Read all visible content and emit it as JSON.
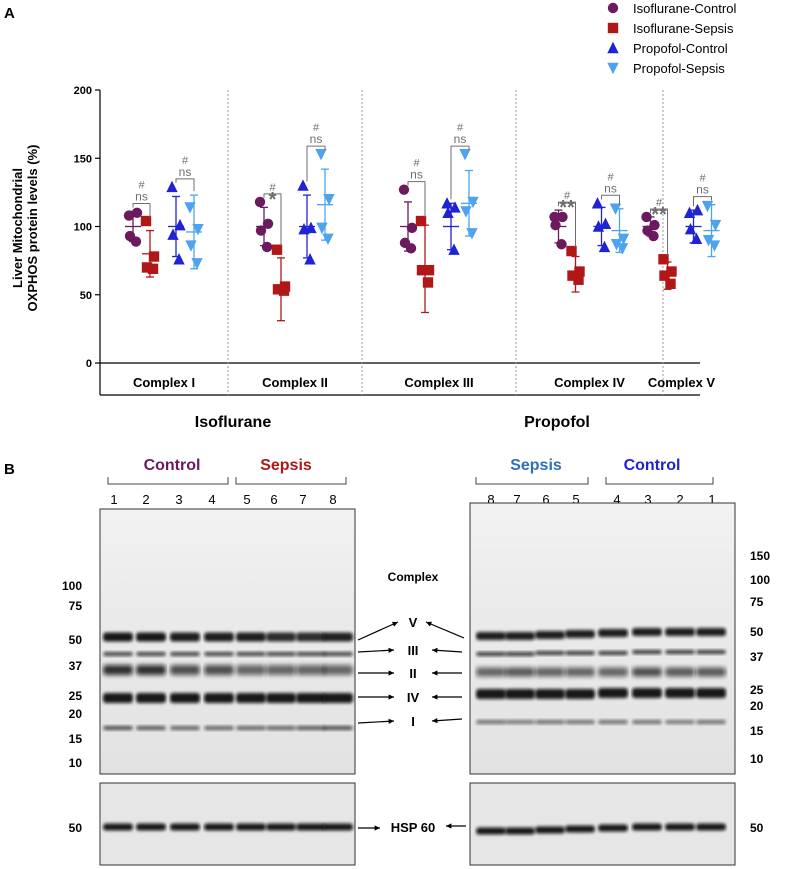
{
  "panel_a": {
    "letter": "A",
    "y_label_line1": "Liver Mitochondrial",
    "y_label_line2": "OXPHOS protein levels (%)",
    "section_labels": [
      "Isoflurane",
      "Propofol"
    ]
  },
  "panel_b": {
    "letter": "B",
    "isoflurane_blot": {
      "control_label": "Control",
      "sepsis_label": "Sepsis",
      "lanes": [
        "1",
        "2",
        "3",
        "4",
        "5",
        "6",
        "7",
        "8"
      ],
      "mw_markers": [
        "100",
        "75",
        "50",
        "37",
        "25",
        "20",
        "15",
        "10"
      ],
      "hsp_marker": "50"
    },
    "propofol_blot": {
      "sepsis_label": "Sepsis",
      "control_label": "Control",
      "lanes": [
        "8",
        "7",
        "6",
        "5",
        "4",
        "3",
        "2",
        "1"
      ],
      "mw_markers": [
        "150",
        "100",
        "75",
        "50",
        "37",
        "25",
        "20",
        "15",
        "10"
      ],
      "hsp_marker": "50"
    },
    "complex_title": "Complex",
    "complex_labels": [
      "V",
      "III",
      "II",
      "IV",
      "I"
    ],
    "hsp_label": "HSP 60"
  },
  "colors": {
    "isoflurane_control": "#6b1a5e",
    "isoflurane_sepsis": "#b01818",
    "propofol_control": "#1f23d4",
    "propofol_sepsis": "#4da3ee",
    "annotation": "#6e6e6e"
  },
  "chart_data": {
    "type": "scatter",
    "title": "",
    "xlabel": "",
    "ylabel": "Liver Mitochondrial OXPHOS protein levels (%)",
    "ylim": [
      0,
      200
    ],
    "yticks": [
      0,
      50,
      100,
      150,
      200
    ],
    "categories": [
      "Complex I",
      "Complex II",
      "Complex III",
      "Complex IV",
      "Complex V"
    ],
    "legend": [
      "Isoflurane-Control",
      "Isoflurane-Sepsis",
      "Propofol-Control",
      "Propofol-Sepsis"
    ],
    "legend_position": "top-right",
    "series": [
      {
        "name": "Isoflurane-Control",
        "marker": "circle",
        "color": "#6b1a5e",
        "points": [
          [
            108,
            110,
            93,
            89
          ],
          [
            118,
            102,
            97,
            85
          ],
          [
            127,
            99,
            88,
            84
          ],
          [
            107,
            107,
            101,
            87
          ],
          [
            107,
            101,
            97,
            93
          ]
        ],
        "mean": [
          100,
          100,
          100,
          100,
          100
        ],
        "sd": [
          11,
          14,
          18,
          12,
          7
        ]
      },
      {
        "name": "Isoflurane-Sepsis",
        "marker": "square",
        "color": "#b01818",
        "points": [
          [
            104,
            78,
            70,
            69
          ],
          [
            83,
            56,
            54,
            53
          ],
          [
            104,
            68,
            68,
            59
          ],
          [
            82,
            67,
            64,
            61
          ],
          [
            76,
            67,
            64,
            58
          ]
        ],
        "mean": [
          80,
          54,
          69,
          65,
          64
        ],
        "sd": [
          17,
          23,
          32,
          13,
          10
        ]
      },
      {
        "name": "Propofol-Control",
        "marker": "triangle-up",
        "color": "#1f23d4",
        "points": [
          [
            129,
            101,
            94,
            76
          ],
          [
            130,
            99,
            98,
            76
          ],
          [
            117,
            114,
            110,
            83
          ],
          [
            117,
            102,
            100,
            85
          ],
          [
            110,
            112,
            98,
            91
          ]
        ],
        "mean": [
          100,
          100,
          100,
          100,
          100
        ],
        "sd": [
          22,
          23,
          17,
          14,
          12
        ]
      },
      {
        "name": "Propofol-Sepsis",
        "marker": "triangle-down",
        "color": "#4da3ee",
        "points": [
          [
            114,
            98,
            86,
            73
          ],
          [
            153,
            120,
            99,
            91
          ],
          [
            153,
            118,
            111,
            95
          ],
          [
            113,
            91,
            87,
            84
          ],
          [
            115,
            101,
            90,
            86
          ]
        ],
        "mean": [
          96,
          116,
          117,
          97,
          97
        ],
        "sd": [
          27,
          26,
          24,
          16,
          19
        ]
      }
    ],
    "annotations": [
      {
        "complex": "Complex I",
        "pair": "Isoflurane",
        "sig": "ns",
        "hash": "#"
      },
      {
        "complex": "Complex I",
        "pair": "Propofol",
        "sig": "ns",
        "hash": "#"
      },
      {
        "complex": "Complex II",
        "pair": "Isoflurane",
        "sig": "*",
        "hash": "#"
      },
      {
        "complex": "Complex II",
        "pair": "Propofol",
        "sig": "ns",
        "hash": "#"
      },
      {
        "complex": "Complex III",
        "pair": "Isoflurane",
        "sig": "ns",
        "hash": "#"
      },
      {
        "complex": "Complex III",
        "pair": "Propofol",
        "sig": "ns",
        "hash": "#"
      },
      {
        "complex": "Complex IV",
        "pair": "Isoflurane",
        "sig": "**",
        "hash": "#"
      },
      {
        "complex": "Complex IV",
        "pair": "Propofol",
        "sig": "ns",
        "hash": "#"
      },
      {
        "complex": "Complex V",
        "pair": "Isoflurane",
        "sig": "**",
        "hash": "#"
      },
      {
        "complex": "Complex V",
        "pair": "Propofol",
        "sig": "ns",
        "hash": "#"
      }
    ],
    "group_labels": [
      "Isoflurane",
      "Propofol"
    ]
  }
}
